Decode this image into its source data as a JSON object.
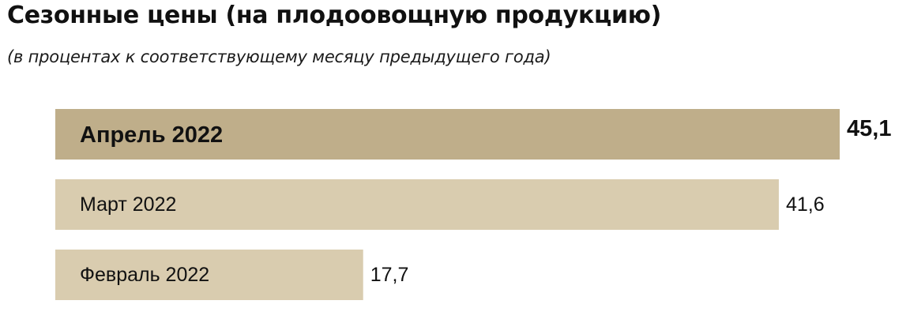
{
  "title": "Сезонные цены (на плодоовощную продукцию)",
  "subtitle": "(в процентах к соответствующему месяцу предыдущего года)",
  "colors": {
    "highlight_bar": "#bfae8a",
    "bar": "#d9ccaf",
    "text": "#111111"
  },
  "chart_data": {
    "type": "bar",
    "orientation": "horizontal",
    "categories": [
      "Апрель 2022",
      "Март 2022",
      "Февраль 2022"
    ],
    "values": [
      45.1,
      41.6,
      17.7
    ],
    "value_labels": [
      "45,1",
      "41,6",
      "17,7"
    ],
    "highlighted": [
      true,
      false,
      false
    ],
    "title": "Сезонные цены (на плодоовощную продукцию)",
    "subtitle": "(в процентах к соответствующему месяцу предыдущего года)",
    "xlim": [
      0,
      45.1
    ],
    "grid": false,
    "legend": "none"
  }
}
